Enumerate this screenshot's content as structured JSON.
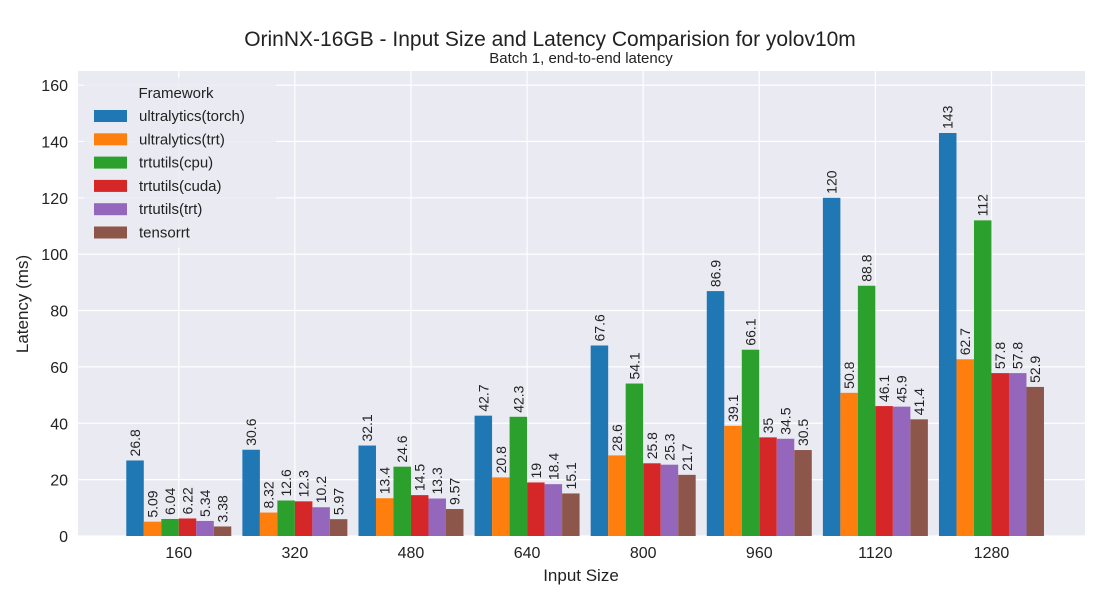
{
  "chart_data": {
    "type": "bar",
    "title": "OrinNX-16GB - Input Size and Latency Comparision for yolov10m",
    "subtitle": "Batch 1, end-to-end latency",
    "xlabel": "Input Size",
    "ylabel": "Latency (ms)",
    "ylim": [
      0,
      165
    ],
    "yticks": [
      0,
      20,
      40,
      60,
      80,
      100,
      120,
      140,
      160
    ],
    "grid": true,
    "legend_title": "Framework",
    "legend_position": "top-left",
    "categories": [
      "160",
      "320",
      "480",
      "640",
      "800",
      "960",
      "1120",
      "1280"
    ],
    "series": [
      {
        "name": "ultralytics(torch)",
        "color": "#1f77b4",
        "values": [
          26.8,
          30.6,
          32.1,
          42.7,
          67.6,
          86.9,
          120,
          143
        ],
        "labels": [
          "26.8",
          "30.6",
          "32.1",
          "42.7",
          "67.6",
          "86.9",
          "120",
          "143"
        ]
      },
      {
        "name": "ultralytics(trt)",
        "color": "#ff7f0e",
        "values": [
          5.09,
          8.32,
          13.4,
          20.8,
          28.6,
          39.1,
          50.8,
          62.7
        ],
        "labels": [
          "5.09",
          "8.32",
          "13.4",
          "20.8",
          "28.6",
          "39.1",
          "50.8",
          "62.7"
        ]
      },
      {
        "name": "trtutils(cpu)",
        "color": "#2ca02c",
        "values": [
          6.04,
          12.6,
          24.6,
          42.3,
          54.1,
          66.1,
          88.8,
          112
        ],
        "labels": [
          "6.04",
          "12.6",
          "24.6",
          "42.3",
          "54.1",
          "66.1",
          "88.8",
          "112"
        ]
      },
      {
        "name": "trtutils(cuda)",
        "color": "#d62728",
        "values": [
          6.22,
          12.3,
          14.5,
          19,
          25.8,
          35,
          46.1,
          57.8
        ],
        "labels": [
          "6.22",
          "12.3",
          "14.5",
          "19",
          "25.8",
          "35",
          "46.1",
          "57.8"
        ]
      },
      {
        "name": "trtutils(trt)",
        "color": "#9467bd",
        "values": [
          5.34,
          10.2,
          13.3,
          18.4,
          25.3,
          34.5,
          45.9,
          57.8
        ],
        "labels": [
          "5.34",
          "10.2",
          "13.3",
          "18.4",
          "25.3",
          "34.5",
          "45.9",
          "57.8"
        ]
      },
      {
        "name": "tensorrt",
        "color": "#8c564b",
        "values": [
          3.38,
          5.97,
          9.57,
          15.1,
          21.7,
          30.5,
          41.4,
          52.9
        ],
        "labels": [
          "3.38",
          "5.97",
          "9.57",
          "15.1",
          "21.7",
          "30.5",
          "41.4",
          "52.9"
        ]
      }
    ]
  }
}
